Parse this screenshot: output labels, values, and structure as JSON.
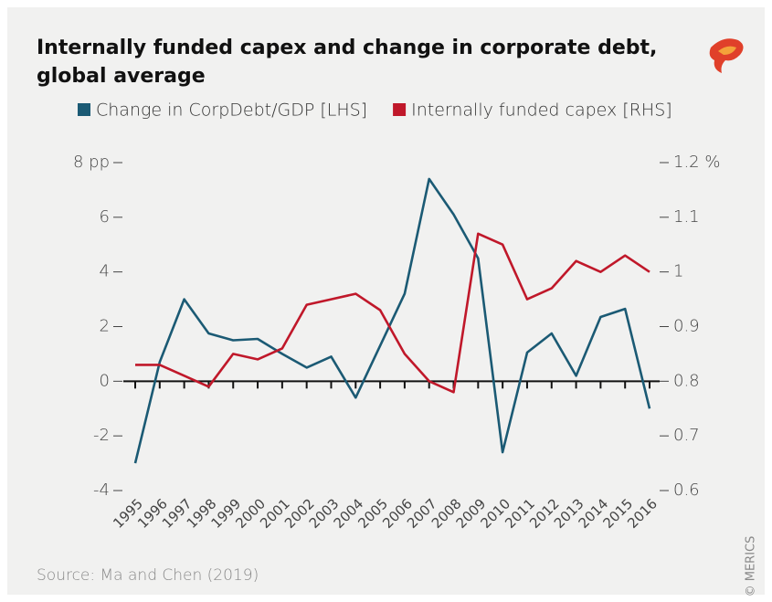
{
  "chart_data": {
    "type": "line",
    "title": [
      "Internally funded capex and change in corporate debt,",
      "global average"
    ],
    "source": "Source: Ma and Chen (2019)",
    "credit": "© MERICS",
    "categories": [
      "1995",
      "1996",
      "1997",
      "1998",
      "1999",
      "2000",
      "2001",
      "2002",
      "2003",
      "2004",
      "2005",
      "2006",
      "2007",
      "2008",
      "2009",
      "2010",
      "2011",
      "2012",
      "2013",
      "2014",
      "2015",
      "2016"
    ],
    "series": [
      {
        "name": "Change in CorpDebt/GDP [LHS]",
        "color": "#1b5a74",
        "values": [
          -3.0,
          0.7,
          3.0,
          1.75,
          1.5,
          1.55,
          1.0,
          0.5,
          0.9,
          -0.6,
          1.3,
          3.2,
          7.4,
          6.1,
          4.5,
          -2.6,
          1.05,
          1.75,
          0.2,
          2.35,
          2.65,
          -1.0
        ]
      },
      {
        "name": "Internally funded capex [RHS]",
        "color": "#c0182a",
        "axis": "y2",
        "values": [
          0.83,
          0.83,
          0.81,
          0.79,
          0.85,
          0.84,
          0.86,
          0.94,
          0.95,
          0.96,
          0.93,
          0.85,
          0.8,
          0.78,
          1.07,
          1.05,
          0.95,
          0.97,
          1.02,
          1.0,
          1.03,
          1.0
        ]
      }
    ],
    "ylim": [
      -4,
      8
    ],
    "yticks": [
      -4,
      -2,
      0,
      2,
      4,
      6,
      {
        "value": 8,
        "label": "8 pp"
      }
    ],
    "y2lim": [
      0.6,
      1.2
    ],
    "y2ticks": [
      0.6,
      0.7,
      0.8,
      0.9,
      1,
      1.1,
      {
        "value": 1.2,
        "label": "1.2 %"
      }
    ]
  }
}
